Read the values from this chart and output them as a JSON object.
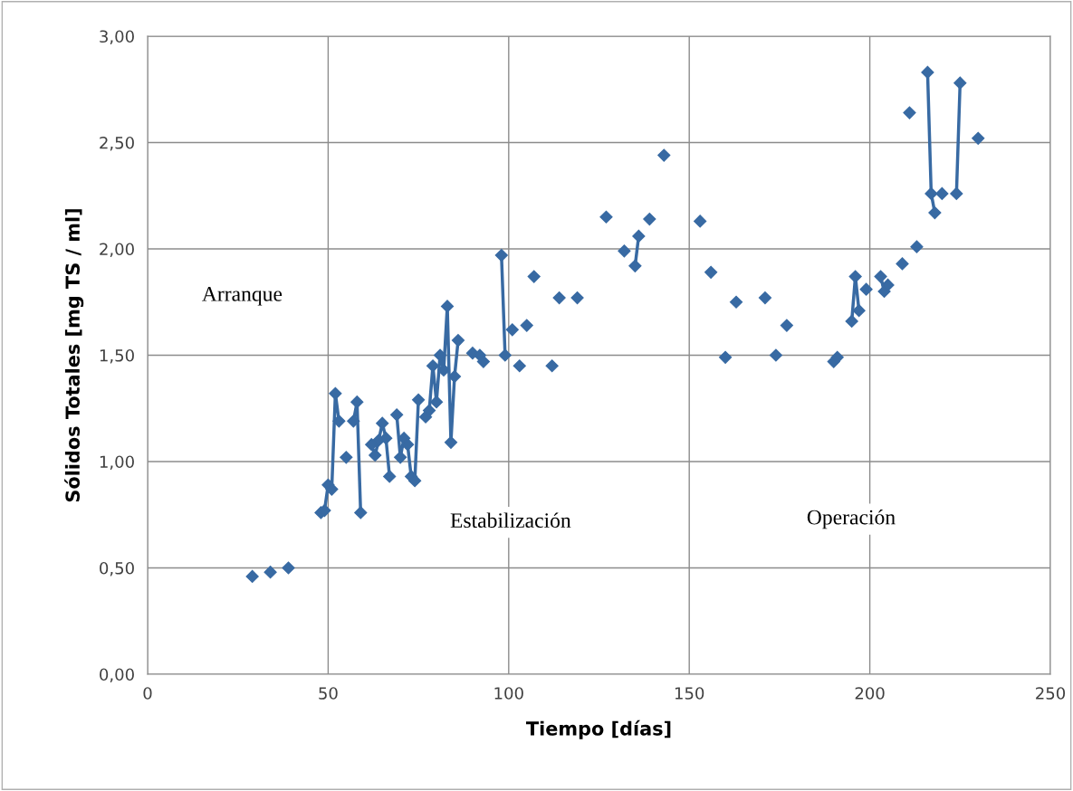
{
  "chart_data": {
    "type": "line",
    "xlabel": "Tiempo [días]",
    "ylabel": "Sólidos Totales [mg TS / ml]",
    "annotations": [
      "Arranque",
      "Estabilización",
      "Operación"
    ],
    "x": [
      29,
      30,
      34,
      35,
      39,
      40,
      48,
      49,
      50,
      51,
      52,
      53,
      54,
      55,
      56,
      57,
      58,
      59,
      60,
      62,
      63,
      64,
      65,
      66,
      67,
      68,
      69,
      70,
      71,
      72,
      73,
      74,
      75,
      76,
      77,
      78,
      79,
      80,
      81,
      82,
      83,
      84,
      85,
      86,
      87,
      90,
      92,
      93,
      94,
      98,
      99,
      100,
      101,
      102,
      103,
      104,
      105,
      106,
      107,
      108,
      112,
      113,
      114,
      115,
      119,
      120,
      127,
      128,
      132,
      133,
      135,
      136,
      137,
      139,
      140,
      143,
      144,
      153,
      154,
      156,
      157,
      160,
      161,
      163,
      164,
      171,
      172,
      174,
      175,
      177,
      178,
      190,
      191,
      192,
      195,
      196,
      197,
      198,
      199,
      200,
      203,
      204,
      205,
      206,
      209,
      210,
      211,
      212,
      213,
      214,
      216,
      217,
      218,
      219,
      220,
      221,
      224,
      225,
      226,
      230
    ],
    "series": [
      {
        "color": "#386aa3",
        "values": [
          0.46,
          null,
          0.48,
          null,
          0.5,
          null,
          0.76,
          0.77,
          0.89,
          0.87,
          1.32,
          1.19,
          null,
          1.02,
          null,
          1.19,
          1.28,
          0.76,
          null,
          1.08,
          1.03,
          1.1,
          1.18,
          1.11,
          0.93,
          null,
          1.22,
          1.02,
          1.11,
          1.08,
          0.93,
          0.91,
          1.29,
          null,
          1.21,
          1.24,
          1.45,
          1.28,
          1.5,
          1.43,
          1.73,
          1.09,
          1.4,
          1.57,
          null,
          1.51,
          1.5,
          1.47,
          null,
          1.97,
          1.5,
          null,
          1.62,
          null,
          1.45,
          null,
          1.64,
          null,
          1.87,
          null,
          1.45,
          null,
          1.77,
          null,
          1.77,
          null,
          2.15,
          null,
          1.99,
          null,
          1.92,
          2.06,
          null,
          2.14,
          null,
          2.44,
          null,
          2.13,
          null,
          1.89,
          null,
          1.49,
          null,
          1.75,
          null,
          1.77,
          null,
          1.5,
          null,
          1.64,
          null,
          1.47,
          1.49,
          null,
          1.66,
          1.87,
          1.71,
          null,
          1.81,
          null,
          1.87,
          1.8,
          1.83,
          null,
          1.93,
          null,
          2.64,
          null,
          2.01,
          null,
          2.83,
          2.26,
          2.17,
          null,
          2.26,
          null,
          2.26,
          2.78,
          null,
          2.52
        ]
      }
    ],
    "xlim": [
      0,
      250
    ],
    "xticks": [
      0,
      50,
      100,
      150,
      200,
      250
    ],
    "ylim": [
      0,
      3
    ],
    "yticks": [
      {
        "value": 0,
        "label": "0,00"
      },
      {
        "value": 0.5,
        "label": "0,50"
      },
      {
        "value": 1,
        "label": "1,00"
      },
      {
        "value": 1.5,
        "label": "1,50"
      },
      {
        "value": 2,
        "label": "2,00"
      },
      {
        "value": 2.5,
        "label": "2,50"
      },
      {
        "value": 3,
        "label": "3,00"
      }
    ],
    "grid": true,
    "marker": "diamond",
    "line_style": "solid",
    "legend": false
  }
}
